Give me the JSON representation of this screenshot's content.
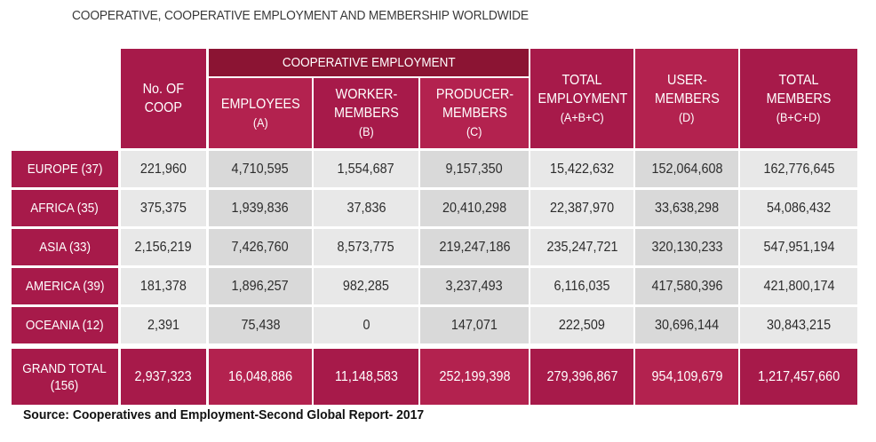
{
  "chart_data": {
    "type": "table",
    "title": "COOPERATIVE, COOPERATIVE EMPLOYMENT AND MEMBERSHIP WORLDWIDE",
    "group_header": "COOPERATIVE EMPLOYMENT",
    "columns": [
      {
        "label": "No. OF COOP",
        "sub": ""
      },
      {
        "label": "EMPLOYEES",
        "sub": "(A)"
      },
      {
        "label": "WORKER-MEMBERS",
        "sub": "(B)"
      },
      {
        "label": "PRODUCER-MEMBERS",
        "sub": "(C)"
      },
      {
        "label": "TOTAL EMPLOYMENT",
        "sub": "(A+B+C)"
      },
      {
        "label": "USER-MEMBERS",
        "sub": "(D)"
      },
      {
        "label": "TOTAL MEMBERS",
        "sub": "(B+C+D)"
      }
    ],
    "rows": [
      {
        "label": "EUROPE (37)",
        "values": [
          "221,960",
          "4,710,595",
          "1,554,687",
          "9,157,350",
          "15,422,632",
          "152,064,608",
          "162,776,645"
        ]
      },
      {
        "label": "AFRICA (35)",
        "values": [
          "375,375",
          "1,939,836",
          "37,836",
          "20,410,298",
          "22,387,970",
          "33,638,298",
          "54,086,432"
        ]
      },
      {
        "label": "ASIA (33)",
        "values": [
          "2,156,219",
          "7,426,760",
          "8,573,775",
          "219,247,186",
          "235,247,721",
          "320,130,233",
          "547,951,194"
        ]
      },
      {
        "label": "AMERICA (39)",
        "values": [
          "181,378",
          "1,896,257",
          "982,285",
          "3,237,493",
          "6,116,035",
          "417,580,396",
          "421,800,174"
        ]
      },
      {
        "label": "OCEANIA (12)",
        "values": [
          "2,391",
          "75,438",
          "0",
          "147,071",
          "222,509",
          "30,696,144",
          "30,843,215"
        ]
      }
    ],
    "total": {
      "label": "GRAND TOTAL (156)",
      "values": [
        "2,937,323",
        "16,048,886",
        "11,148,583",
        "252,199,398",
        "279,396,867",
        "954,109,679",
        "1,217,457,660"
      ]
    },
    "source": "Source: Cooperatives and Employment-Second Global Report- 2017"
  },
  "colors": {
    "header_primary": "#a71a4a",
    "header_secondary": "#b3224f",
    "group_band": "#8b1433",
    "row_light": "#e8e8e8",
    "row_dark": "#d9d9d9"
  }
}
